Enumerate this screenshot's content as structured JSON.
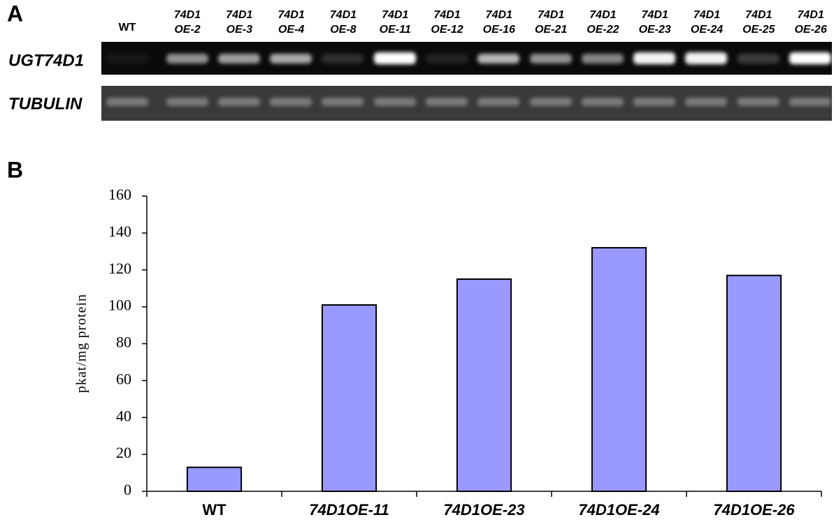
{
  "panel_a": {
    "label": "A",
    "lanes": [
      [
        "WT"
      ],
      [
        "74D1",
        "OE-2"
      ],
      [
        "74D1",
        "OE-3"
      ],
      [
        "74D1",
        "OE-4"
      ],
      [
        "74D1",
        "OE-8"
      ],
      [
        "74D1",
        "OE-11"
      ],
      [
        "74D1",
        "OE-12"
      ],
      [
        "74D1",
        "OE-16"
      ],
      [
        "74D1",
        "OE-21"
      ],
      [
        "74D1",
        "OE-22"
      ],
      [
        "74D1",
        "OE-23"
      ],
      [
        "74D1",
        "OE-24"
      ],
      [
        "74D1",
        "OE-25"
      ],
      [
        "74D1",
        "OE-26"
      ]
    ],
    "rows": [
      "UGT74D1",
      "TUBULIN"
    ]
  },
  "panel_b": {
    "label": "B"
  },
  "chart_data": {
    "type": "bar",
    "ylabel": "pkat/mg protein",
    "categories": [
      "WT",
      "74D1OE-11",
      "74D1OE-23",
      "74D1OE-24",
      "74D1OE-26"
    ],
    "values": [
      13,
      101,
      115,
      132,
      117
    ],
    "color": "#9999ff",
    "ylim": [
      0,
      160
    ],
    "yticks": [
      0,
      20,
      40,
      60,
      80,
      100,
      120,
      140,
      160
    ]
  }
}
